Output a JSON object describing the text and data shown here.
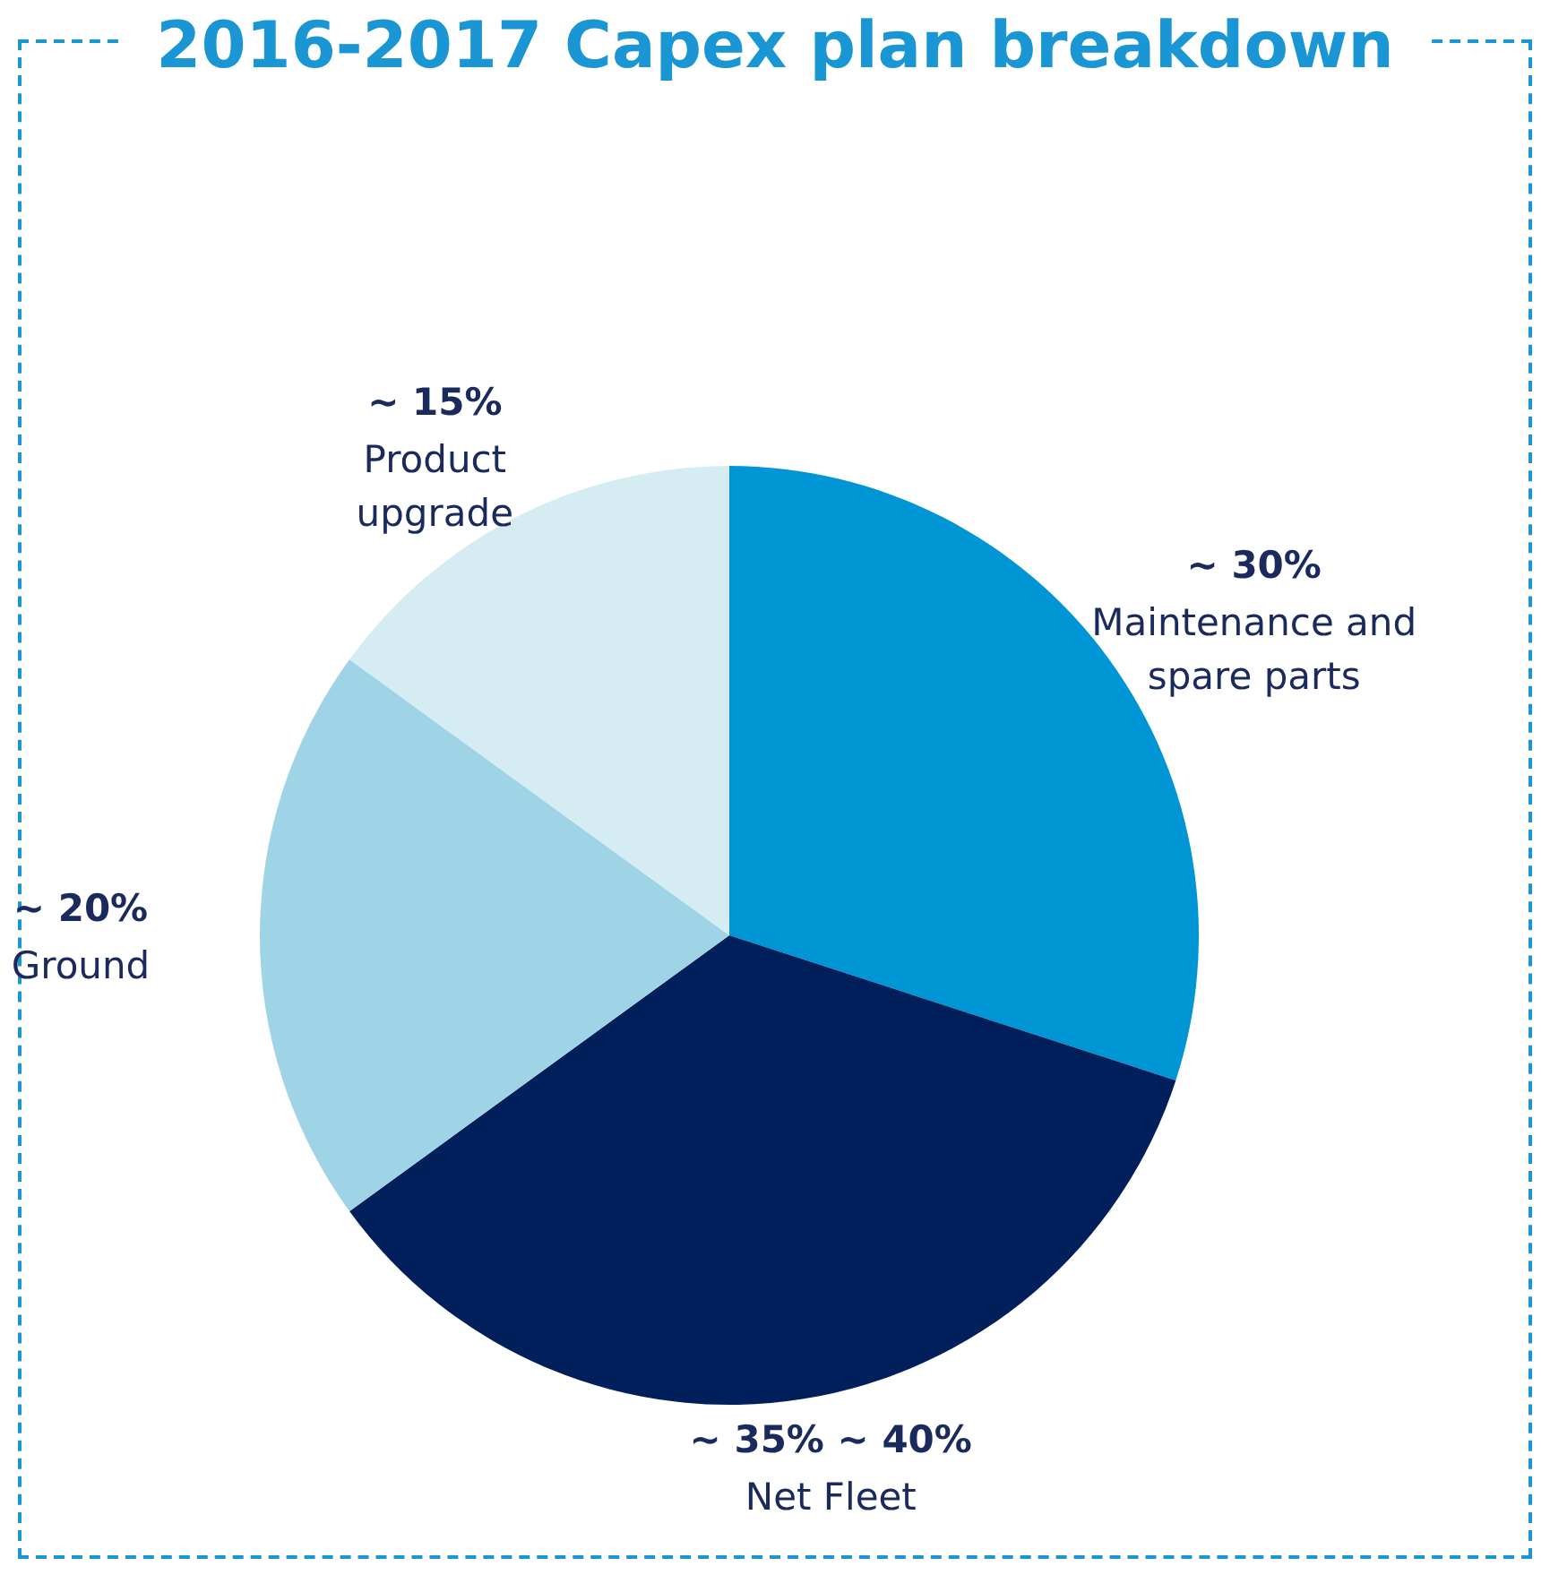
{
  "chart_data": {
    "type": "pie",
    "title": "2016-2017 Capex plan breakdown",
    "categories": [
      "Maintenance and spare parts",
      "Net Fleet",
      "Ground",
      "Product upgrade"
    ],
    "values": [
      30,
      35,
      20,
      15
    ],
    "colors": [
      "#0096d6",
      "#001f5b",
      "#9fd4e6",
      "#d6ecf3"
    ],
    "value_labels": [
      "~ 30%",
      "~ 35% ~ 40%",
      "~ 20%",
      "~ 15%"
    ],
    "legend": false
  }
}
